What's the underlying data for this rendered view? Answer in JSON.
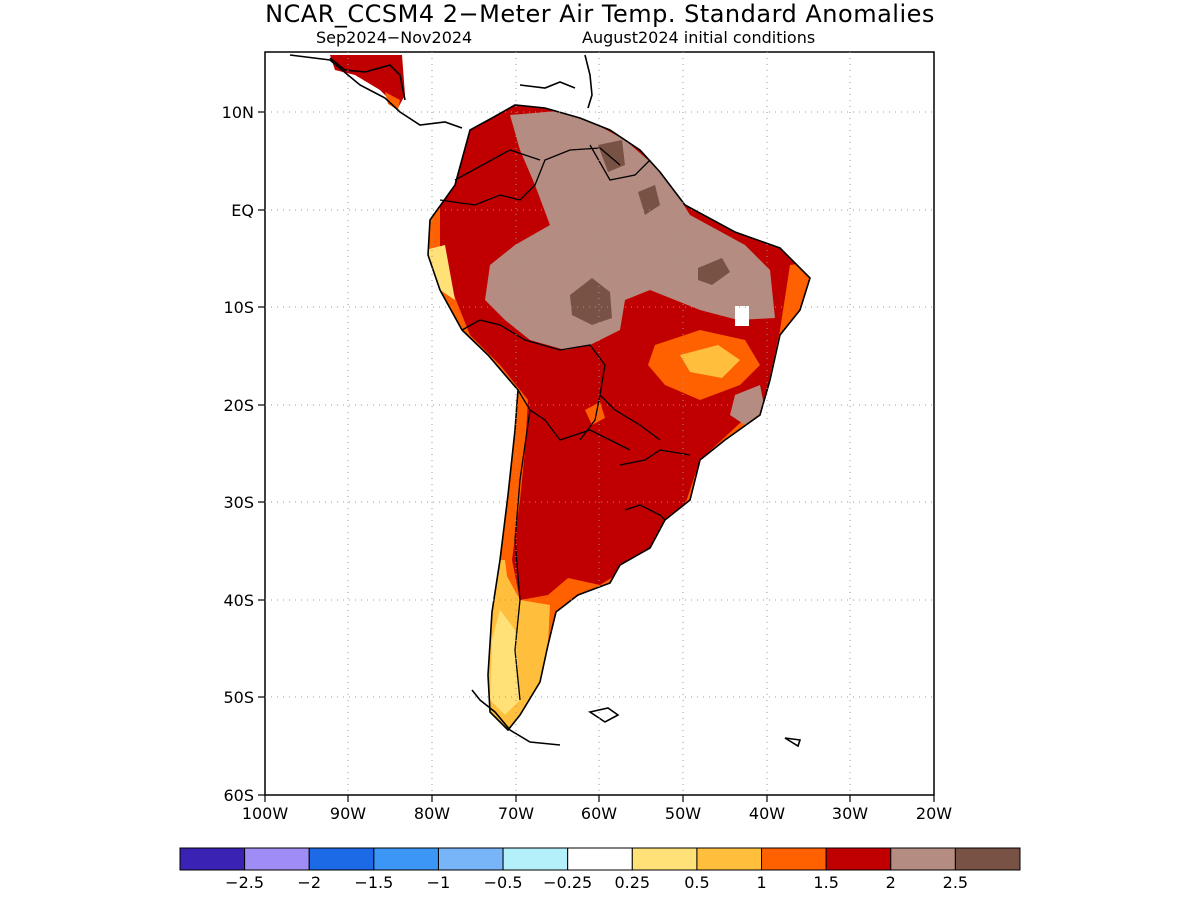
{
  "header": {
    "title": "NCAR_CCSM4 2−Meter Air Temp. Standard Anomalies",
    "period": "Sep2024−Nov2024",
    "init": "August2024 initial conditions"
  },
  "map": {
    "lat_labels": [
      "10N",
      "EQ",
      "10S",
      "20S",
      "30S",
      "40S",
      "50S",
      "60S"
    ],
    "lon_labels": [
      "100W",
      "90W",
      "80W",
      "70W",
      "60W",
      "50W",
      "40W",
      "30W",
      "20W"
    ],
    "lon_range": [
      -100,
      -20
    ],
    "lat_range": [
      -60,
      15
    ]
  },
  "colorbar": {
    "colors": [
      "#3a22b4",
      "#a08cf5",
      "#1d6ae6",
      "#3c96f5",
      "#78b4f8",
      "#b4f0fa",
      "#ffffff",
      "#ffe177",
      "#ffbf3c",
      "#ff6000",
      "#c00000",
      "#b48c81",
      "#795246"
    ],
    "labels": [
      "−2.5",
      "−2",
      "−1.5",
      "−1",
      "−0.5",
      "−0.25",
      "0.25",
      "0.5",
      "1",
      "1.5",
      "2",
      "2.5"
    ]
  }
}
